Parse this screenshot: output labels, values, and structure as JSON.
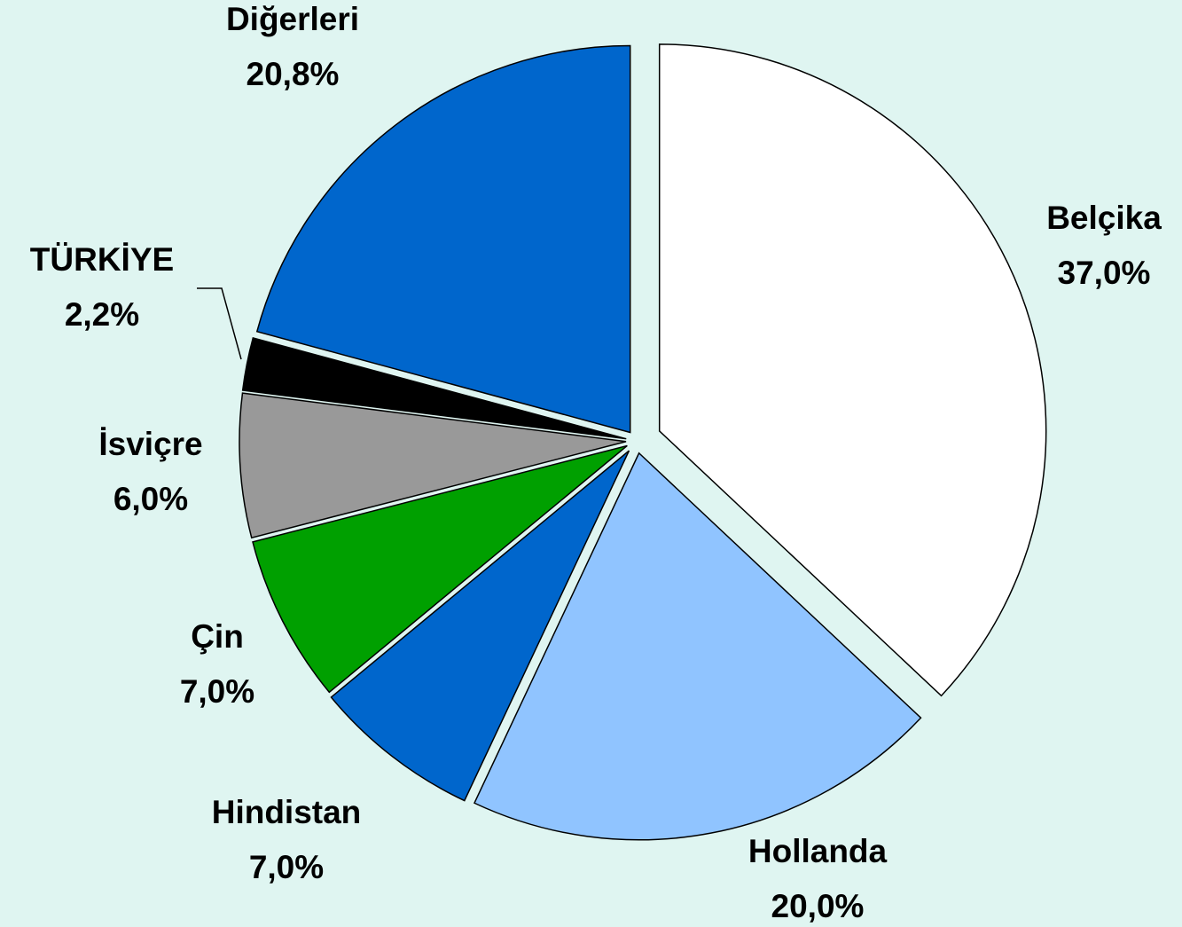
{
  "chart_data": {
    "type": "pie",
    "categories": [
      "Belçika",
      "Hollanda",
      "Hindistan",
      "Çin",
      "İsviçre",
      "TÜRKİYE",
      "Diğerleri"
    ],
    "values": [
      37.0,
      20.0,
      7.0,
      7.0,
      6.0,
      2.2,
      20.8
    ],
    "value_labels": [
      "37,0%",
      "20,0%",
      "7,0%",
      "7,0%",
      "6,0%",
      "2,2%",
      "20,8%"
    ],
    "colors": [
      "#ffffff",
      "#90c4ff",
      "#0066cc",
      "#00a000",
      "#999999",
      "#000000",
      "#0066cc"
    ]
  }
}
